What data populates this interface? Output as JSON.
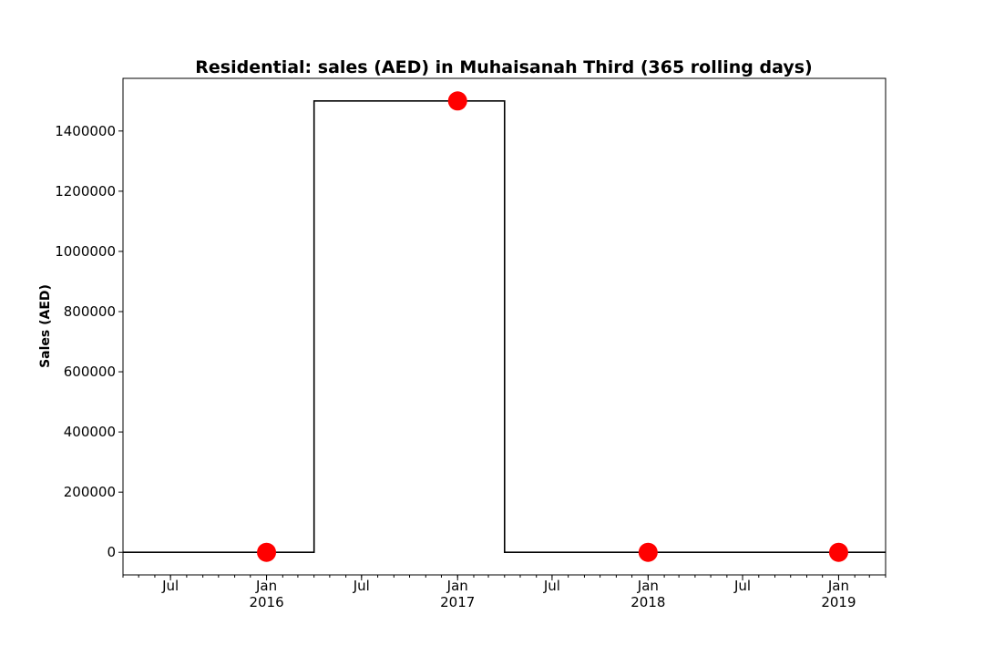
{
  "chart_data": {
    "type": "line",
    "title": "Residential: sales (AED) in Muhaisanah Third (365 rolling days)",
    "xlabel": "",
    "ylabel": "Sales (AED)",
    "x_range": [
      "2015-04-01",
      "2019-04-01"
    ],
    "ylim": [
      -75000,
      1575000
    ],
    "step_series": {
      "x": [
        "2015-04-01",
        "2016-04-01",
        "2016-04-01",
        "2017-04-01",
        "2017-04-01",
        "2019-04-01"
      ],
      "y": [
        0,
        0,
        1500000,
        1500000,
        0,
        0
      ],
      "color": "#000000"
    },
    "points": {
      "x": [
        "2016-01-01",
        "2017-01-01",
        "2018-01-01",
        "2019-01-01"
      ],
      "y": [
        0,
        1500000,
        0,
        0
      ],
      "color": "#ff0000"
    },
    "y_ticks": [
      0,
      200000,
      400000,
      600000,
      800000,
      1000000,
      1200000,
      1400000
    ],
    "y_tick_labels": [
      "0",
      "200000",
      "400000",
      "600000",
      "800000",
      "1000000",
      "1200000",
      "1400000"
    ],
    "x_major_ticks": [
      {
        "date": "2015-07-01",
        "label": "Jul",
        "sub": ""
      },
      {
        "date": "2016-01-01",
        "label": "Jan",
        "sub": "2016"
      },
      {
        "date": "2016-07-01",
        "label": "Jul",
        "sub": ""
      },
      {
        "date": "2017-01-01",
        "label": "Jan",
        "sub": "2017"
      },
      {
        "date": "2017-07-01",
        "label": "Jul",
        "sub": ""
      },
      {
        "date": "2018-01-01",
        "label": "Jan",
        "sub": "2018"
      },
      {
        "date": "2018-07-01",
        "label": "Jul",
        "sub": ""
      },
      {
        "date": "2019-01-01",
        "label": "Jan",
        "sub": "2019"
      }
    ],
    "grid": false,
    "legend": "none"
  }
}
